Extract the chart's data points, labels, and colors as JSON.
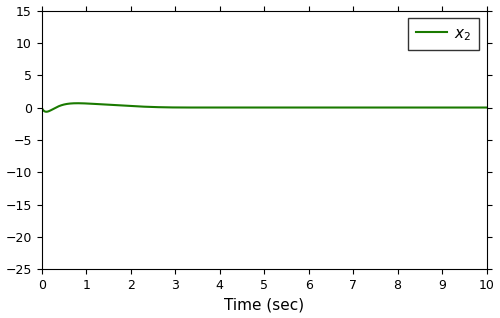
{
  "xlim": [
    0,
    10
  ],
  "ylim": [
    -25,
    15
  ],
  "yticks": [
    -25,
    -20,
    -15,
    -10,
    -5,
    0,
    5,
    10,
    15
  ],
  "xticks": [
    0,
    1,
    2,
    3,
    4,
    5,
    6,
    7,
    8,
    9,
    10
  ],
  "xlabel": "Time (sec)",
  "line_color": "#1a7a00",
  "background_color": "#ffffff",
  "figsize": [
    5.0,
    3.18
  ],
  "dpi": 100,
  "tick_direction": "out",
  "linewidth": 1.5,
  "xlabel_fontsize": 11,
  "tick_fontsize": 9,
  "legend_fontsize": 11
}
